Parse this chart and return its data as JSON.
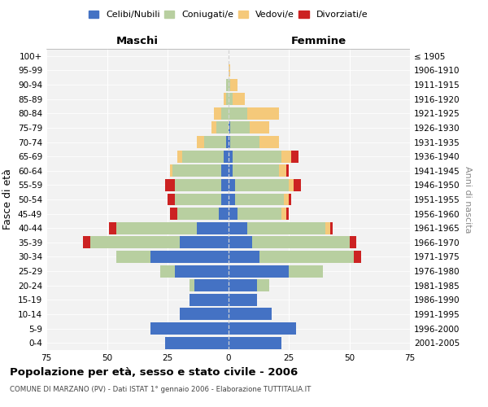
{
  "age_groups": [
    "0-4",
    "5-9",
    "10-14",
    "15-19",
    "20-24",
    "25-29",
    "30-34",
    "35-39",
    "40-44",
    "45-49",
    "50-54",
    "55-59",
    "60-64",
    "65-69",
    "70-74",
    "75-79",
    "80-84",
    "85-89",
    "90-94",
    "95-99",
    "100+"
  ],
  "birth_years": [
    "2001-2005",
    "1996-2000",
    "1991-1995",
    "1986-1990",
    "1981-1985",
    "1976-1980",
    "1971-1975",
    "1966-1970",
    "1961-1965",
    "1956-1960",
    "1951-1955",
    "1946-1950",
    "1941-1945",
    "1936-1940",
    "1931-1935",
    "1926-1930",
    "1921-1925",
    "1916-1920",
    "1911-1915",
    "1906-1910",
    "≤ 1905"
  ],
  "male_celibi": [
    26,
    32,
    20,
    16,
    14,
    22,
    32,
    20,
    13,
    4,
    3,
    3,
    3,
    2,
    1,
    0,
    0,
    0,
    0,
    0,
    0
  ],
  "male_coniugati": [
    0,
    0,
    0,
    0,
    2,
    6,
    14,
    37,
    33,
    17,
    19,
    19,
    20,
    17,
    9,
    5,
    3,
    1,
    1,
    0,
    0
  ],
  "male_vedovi": [
    0,
    0,
    0,
    0,
    0,
    0,
    0,
    0,
    0,
    0,
    0,
    0,
    1,
    2,
    3,
    2,
    3,
    1,
    0,
    0,
    0
  ],
  "male_divorziati": [
    0,
    0,
    0,
    0,
    0,
    0,
    0,
    3,
    3,
    3,
    3,
    4,
    0,
    0,
    0,
    0,
    0,
    0,
    0,
    0,
    0
  ],
  "female_nubili": [
    22,
    28,
    18,
    12,
    12,
    25,
    13,
    10,
    8,
    4,
    3,
    3,
    2,
    2,
    1,
    1,
    0,
    0,
    0,
    0,
    0
  ],
  "female_coniugate": [
    0,
    0,
    0,
    0,
    5,
    14,
    39,
    40,
    32,
    18,
    20,
    22,
    19,
    20,
    12,
    8,
    8,
    2,
    1,
    0,
    0
  ],
  "female_vedove": [
    0,
    0,
    0,
    0,
    0,
    0,
    0,
    0,
    2,
    2,
    2,
    2,
    3,
    4,
    8,
    8,
    13,
    5,
    3,
    1,
    0
  ],
  "female_divorziate": [
    0,
    0,
    0,
    0,
    0,
    0,
    3,
    3,
    1,
    1,
    1,
    3,
    1,
    3,
    0,
    0,
    0,
    0,
    0,
    0,
    0
  ],
  "color_celibi": "#4472c4",
  "color_coniugati": "#b8cfa0",
  "color_vedovi": "#f5c97a",
  "color_divorziati": "#cc2222",
  "xlim": 75,
  "title": "Popolazione per età, sesso e stato civile - 2006",
  "subtitle": "COMUNE DI MARZANO (PV) - Dati ISTAT 1° gennaio 2006 - Elaborazione TUTTITALIA.IT",
  "ylabel_left": "Fasce di età",
  "ylabel_right": "Anni di nascita",
  "label_maschi": "Maschi",
  "label_femmine": "Femmine",
  "legend_labels": [
    "Celibi/Nubili",
    "Coniugati/e",
    "Vedovi/e",
    "Divorziati/e"
  ],
  "bg_color": "#f2f2f2",
  "bar_height": 0.85
}
